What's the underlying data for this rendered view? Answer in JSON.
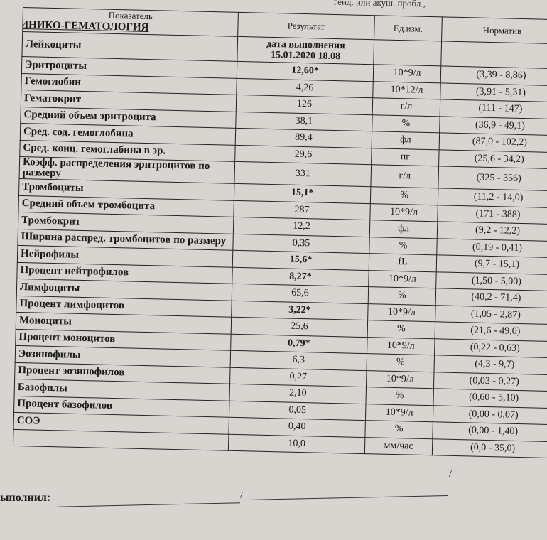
{
  "top_note": "генд. или акуш. пробл.,",
  "header": {
    "indicator": "Показатель",
    "result": "Результат",
    "unit": "Ед.изм.",
    "norm": "Норматив"
  },
  "section": "КЛИНИКО-ГЕМАТОЛОГИЯ",
  "first_row": {
    "name": "Лейкоциты",
    "date_label": "дата выполнения",
    "date": "15.01.2020 18.08"
  },
  "rows": [
    {
      "name": "Эритроциты",
      "result": "12,60*",
      "unit": "10*9/л",
      "norm": "(3,39 - 8,86)"
    },
    {
      "name": "Гемоглобин",
      "result": "4,26",
      "unit": "10*12/л",
      "norm": "(3,91 - 5,31)"
    },
    {
      "name": "Гематокрит",
      "result": "126",
      "unit": "г/л",
      "norm": "(111 - 147)"
    },
    {
      "name": "Средний объем эритроцита",
      "result": "38,1",
      "unit": "%",
      "norm": "(36,9 - 49,1)"
    },
    {
      "name": "Сред. сод. гемоглобина",
      "result": "89,4",
      "unit": "фл",
      "norm": "(87,0 - 102,2)"
    },
    {
      "name": "Сред. конц. гемоглабина в эр.",
      "result": "29,6",
      "unit": "пг",
      "norm": "(25,6 - 34,2)"
    },
    {
      "name": "Коэфф. распределения эритроцитов по размеру",
      "result": "331",
      "unit": "г/л",
      "norm": "(325 - 356)"
    },
    {
      "name": "Тромбоциты",
      "result": "15,1*",
      "unit": "%",
      "norm": "(11,2 - 14,0)"
    },
    {
      "name": "Средний объем тромбоцита",
      "result": "287",
      "unit": "10*9/л",
      "norm": "(171 - 388)"
    },
    {
      "name": "Тромбокрит",
      "result": "12,2",
      "unit": "фл",
      "norm": "(9,2 - 12,2)"
    },
    {
      "name": "Ширина распред. тромбоцитов по размеру",
      "result": "0,35",
      "unit": "%",
      "norm": "(0,19 - 0,41)"
    },
    {
      "name": "Нейрофилы",
      "result": "15,6*",
      "unit": "fL",
      "norm": "(9,7 - 15,1)"
    },
    {
      "name": "Процент нейтрофилов",
      "result": "8,27*",
      "unit": "10*9/л",
      "norm": "(1,50 - 5,00)"
    },
    {
      "name": "Лимфоциты",
      "result": "65,6",
      "unit": "%",
      "norm": "(40,2 - 71,4)"
    },
    {
      "name": "Процент лимфоцитов",
      "result": "3,22*",
      "unit": "10*9/л",
      "norm": "(1,05 - 2,87)"
    },
    {
      "name": "Моноциты",
      "result": "25,6",
      "unit": "%",
      "norm": "(21,6 - 49,0)"
    },
    {
      "name": "Процент моноцитов",
      "result": "0,79*",
      "unit": "10*9/л",
      "norm": "(0,22 - 0,63)"
    },
    {
      "name": "Эозинофилы",
      "result": "6,3",
      "unit": "%",
      "norm": "(4,3 - 9,7)"
    },
    {
      "name": "Процент эозинофилов",
      "result": "0,27",
      "unit": "10*9/л",
      "norm": "(0,03 - 0,27)"
    },
    {
      "name": "Базофилы",
      "result": "2,10",
      "unit": "%",
      "norm": "(0,60 - 5,10)"
    },
    {
      "name": "Процент базофилов",
      "result": "0,05",
      "unit": "10*9/л",
      "norm": "(0,00 - 0,07)"
    },
    {
      "name": "СОЭ",
      "result": "0,40",
      "unit": "%",
      "norm": "(0,00 - 1,40)"
    },
    {
      "name": "",
      "result": "10,0",
      "unit": "мм/час",
      "norm": "(0,0 - 35,0)"
    }
  ],
  "footer": {
    "signed_label": "ыполнил:"
  }
}
